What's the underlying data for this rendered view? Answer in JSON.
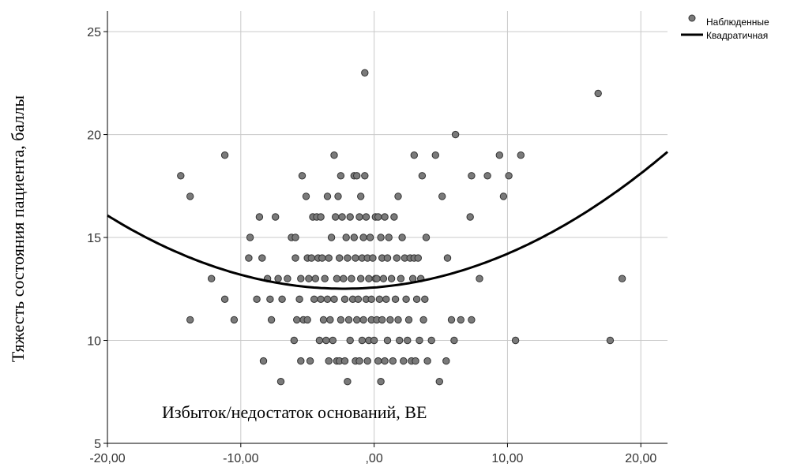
{
  "chart_data": {
    "type": "scatter",
    "xlabel": "Избыток/недостаток оснований, BE",
    "ylabel": "Тяжесть состояния пациента, баллы",
    "xlim": [
      -20,
      22
    ],
    "ylim": [
      5,
      26
    ],
    "x_ticks": [
      -20,
      -10,
      0,
      10,
      20
    ],
    "x_tick_labels": [
      "-20,00",
      "-10,00",
      ",00",
      "10,00",
      "20,00"
    ],
    "y_ticks": [
      5,
      10,
      15,
      20,
      25
    ],
    "y_tick_labels": [
      "5",
      "10",
      "15",
      "20",
      "25"
    ],
    "grid": true,
    "legend_position": "top-right",
    "colors": {
      "points": "#7a7a7a",
      "curve": "#000000"
    },
    "series": [
      {
        "name": "Наблюденные",
        "kind": "points",
        "points": [
          [
            -14.5,
            18
          ],
          [
            -13.8,
            17
          ],
          [
            -13.8,
            11
          ],
          [
            -12.2,
            13
          ],
          [
            -11.2,
            19
          ],
          [
            -11.2,
            12
          ],
          [
            -10.5,
            11
          ],
          [
            -9.4,
            14
          ],
          [
            -9.3,
            15
          ],
          [
            -8.8,
            12
          ],
          [
            -8.6,
            16
          ],
          [
            -8.4,
            14
          ],
          [
            -8.3,
            9
          ],
          [
            -8.0,
            13
          ],
          [
            -7.8,
            12
          ],
          [
            -7.7,
            11
          ],
          [
            -7.4,
            16
          ],
          [
            -7.2,
            13
          ],
          [
            -7.0,
            8
          ],
          [
            -6.9,
            12
          ],
          [
            -6.5,
            13
          ],
          [
            -6.2,
            15
          ],
          [
            -6.0,
            10
          ],
          [
            -5.9,
            14
          ],
          [
            -5.9,
            15
          ],
          [
            -5.8,
            11
          ],
          [
            -5.6,
            12
          ],
          [
            -5.5,
            9
          ],
          [
            -5.5,
            13
          ],
          [
            -5.4,
            18
          ],
          [
            -5.3,
            11
          ],
          [
            -5.1,
            17
          ],
          [
            -5.0,
            14
          ],
          [
            -5.0,
            11
          ],
          [
            -4.9,
            13
          ],
          [
            -4.8,
            9
          ],
          [
            -4.7,
            14
          ],
          [
            -4.6,
            16
          ],
          [
            -4.5,
            12
          ],
          [
            -4.4,
            13
          ],
          [
            -4.3,
            16
          ],
          [
            -4.2,
            14
          ],
          [
            -4.1,
            10
          ],
          [
            -4.0,
            12
          ],
          [
            -4.0,
            16
          ],
          [
            -3.9,
            14
          ],
          [
            -3.8,
            11
          ],
          [
            -3.7,
            13
          ],
          [
            -3.6,
            10
          ],
          [
            -3.5,
            17
          ],
          [
            -3.5,
            12
          ],
          [
            -3.4,
            9
          ],
          [
            -3.4,
            14
          ],
          [
            -3.3,
            11
          ],
          [
            -3.2,
            15
          ],
          [
            -3.1,
            10
          ],
          [
            -3.0,
            19
          ],
          [
            -3.0,
            12
          ],
          [
            -2.9,
            16
          ],
          [
            -2.8,
            9
          ],
          [
            -2.8,
            13
          ],
          [
            -2.7,
            17
          ],
          [
            -2.6,
            14
          ],
          [
            -2.6,
            9
          ],
          [
            -2.5,
            18
          ],
          [
            -2.5,
            11
          ],
          [
            -2.4,
            16
          ],
          [
            -2.3,
            13
          ],
          [
            -2.2,
            9
          ],
          [
            -2.2,
            12
          ],
          [
            -2.1,
            15
          ],
          [
            -2.0,
            8
          ],
          [
            -2.0,
            14
          ],
          [
            -1.9,
            11
          ],
          [
            -1.8,
            16
          ],
          [
            -1.8,
            10
          ],
          [
            -1.7,
            13
          ],
          [
            -1.6,
            12
          ],
          [
            -1.5,
            18
          ],
          [
            -1.5,
            15
          ],
          [
            -1.4,
            9
          ],
          [
            -1.4,
            14
          ],
          [
            -1.3,
            18
          ],
          [
            -1.3,
            11
          ],
          [
            -1.2,
            12
          ],
          [
            -1.1,
            16
          ],
          [
            -1.1,
            9
          ],
          [
            -1.0,
            13
          ],
          [
            -1.0,
            17
          ],
          [
            -0.9,
            14
          ],
          [
            -0.9,
            10
          ],
          [
            -0.8,
            15
          ],
          [
            -0.8,
            11
          ],
          [
            -0.7,
            23
          ],
          [
            -0.7,
            18
          ],
          [
            -0.6,
            12
          ],
          [
            -0.6,
            16
          ],
          [
            -0.5,
            14
          ],
          [
            -0.5,
            9
          ],
          [
            -0.4,
            13
          ],
          [
            -0.4,
            10
          ],
          [
            -0.3,
            15
          ],
          [
            -0.2,
            12
          ],
          [
            -0.2,
            11
          ],
          [
            -0.1,
            14
          ],
          [
            0.0,
            10
          ],
          [
            0.1,
            13
          ],
          [
            0.1,
            16
          ],
          [
            0.2,
            11
          ],
          [
            0.2,
            13
          ],
          [
            0.3,
            16
          ],
          [
            0.3,
            9
          ],
          [
            0.4,
            12
          ],
          [
            0.5,
            15
          ],
          [
            0.5,
            8
          ],
          [
            0.6,
            14
          ],
          [
            0.6,
            11
          ],
          [
            0.7,
            13
          ],
          [
            0.8,
            9
          ],
          [
            0.8,
            16
          ],
          [
            0.9,
            12
          ],
          [
            1.0,
            10
          ],
          [
            1.0,
            14
          ],
          [
            1.1,
            15
          ],
          [
            1.2,
            11
          ],
          [
            1.3,
            13
          ],
          [
            1.4,
            9
          ],
          [
            1.5,
            16
          ],
          [
            1.6,
            12
          ],
          [
            1.7,
            14
          ],
          [
            1.8,
            17
          ],
          [
            1.8,
            11
          ],
          [
            1.9,
            10
          ],
          [
            2.0,
            13
          ],
          [
            2.1,
            15
          ],
          [
            2.2,
            9
          ],
          [
            2.3,
            14
          ],
          [
            2.4,
            12
          ],
          [
            2.5,
            10
          ],
          [
            2.6,
            11
          ],
          [
            2.7,
            14
          ],
          [
            2.8,
            9
          ],
          [
            2.9,
            13
          ],
          [
            3.0,
            19
          ],
          [
            3.0,
            14
          ],
          [
            3.1,
            9
          ],
          [
            3.2,
            12
          ],
          [
            3.3,
            14
          ],
          [
            3.4,
            10
          ],
          [
            3.5,
            13
          ],
          [
            3.6,
            18
          ],
          [
            3.7,
            11
          ],
          [
            3.8,
            12
          ],
          [
            3.9,
            15
          ],
          [
            4.0,
            9
          ],
          [
            4.3,
            10
          ],
          [
            4.6,
            19
          ],
          [
            4.9,
            8
          ],
          [
            5.1,
            17
          ],
          [
            5.4,
            9
          ],
          [
            5.5,
            14
          ],
          [
            5.8,
            11
          ],
          [
            6.0,
            10
          ],
          [
            6.1,
            20
          ],
          [
            6.5,
            11
          ],
          [
            7.2,
            16
          ],
          [
            7.3,
            18
          ],
          [
            7.3,
            11
          ],
          [
            7.9,
            13
          ],
          [
            8.5,
            18
          ],
          [
            9.4,
            19
          ],
          [
            9.7,
            17
          ],
          [
            10.1,
            18
          ],
          [
            10.6,
            10
          ],
          [
            11.0,
            19
          ],
          [
            16.8,
            22
          ],
          [
            17.7,
            10
          ],
          [
            18.6,
            13
          ]
        ]
      },
      {
        "name": "Квадратичная",
        "kind": "curve",
        "fit": {
          "a": 0.0113,
          "b": 0.051,
          "c": 12.57
        }
      }
    ]
  }
}
